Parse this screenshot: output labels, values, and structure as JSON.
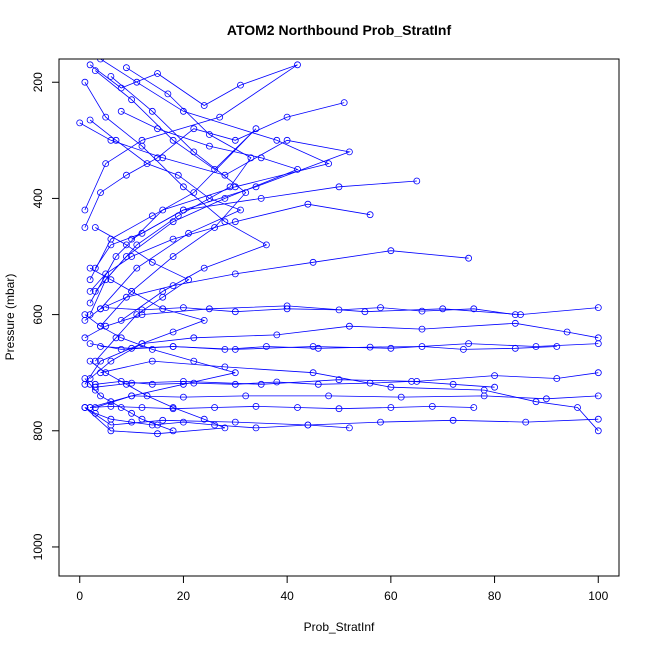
{
  "chart_data": {
    "type": "line",
    "title": "ATOM2 Northbound Prob_StratInf",
    "xlabel": "Prob_StratInf",
    "ylabel": "Pressure (mbar)",
    "xlim": [
      -4,
      104
    ],
    "ylim": [
      1050,
      160
    ],
    "y_reversed": true,
    "x_ticks": [
      0,
      20,
      40,
      60,
      80,
      100
    ],
    "y_ticks": [
      200,
      400,
      600,
      800,
      1000
    ],
    "grid": false,
    "legend": "none",
    "marker": "open-circle",
    "series_color": "#0000ff",
    "series": [
      {
        "x": [
          2,
          8,
          15,
          24,
          31,
          42,
          27,
          12,
          5,
          1
        ],
        "y": [
          170,
          210,
          185,
          240,
          205,
          170,
          260,
          300,
          340,
          420
        ]
      },
      {
        "x": [
          51,
          40,
          30,
          22,
          15,
          9,
          4,
          1
        ],
        "y": [
          235,
          260,
          300,
          280,
          330,
          360,
          390,
          450
        ]
      },
      {
        "x": [
          65,
          50,
          35,
          20,
          12,
          6,
          3
        ],
        "y": [
          370,
          380,
          400,
          420,
          460,
          480,
          520
        ]
      },
      {
        "x": [
          56,
          44,
          30,
          18,
          10,
          5,
          2
        ],
        "y": [
          428,
          410,
          440,
          470,
          500,
          530,
          560
        ]
      },
      {
        "x": [
          75,
          60,
          45,
          30,
          18,
          9,
          4,
          1
        ],
        "y": [
          503,
          490,
          510,
          530,
          550,
          570,
          590,
          610
        ]
      },
      {
        "x": [
          100,
          85,
          70,
          55,
          40,
          25,
          12,
          5,
          1
        ],
        "y": [
          588,
          600,
          590,
          595,
          585,
          590,
          600,
          620,
          640
        ]
      },
      {
        "x": [
          100,
          88,
          75,
          60,
          45,
          30,
          18,
          8,
          2
        ],
        "y": [
          650,
          655,
          650,
          658,
          655,
          660,
          655,
          660,
          650
        ]
      },
      {
        "x": [
          100,
          92,
          80,
          65,
          50,
          35,
          20,
          10,
          3
        ],
        "y": [
          700,
          710,
          705,
          715,
          712,
          720,
          715,
          718,
          725
        ]
      },
      {
        "x": [
          100,
          90,
          78,
          62,
          48,
          32,
          20,
          10,
          2
        ],
        "y": [
          740,
          745,
          740,
          742,
          740,
          740,
          742,
          740,
          760
        ]
      },
      {
        "x": [
          100,
          86,
          72,
          58,
          44,
          30,
          16,
          6,
          1
        ],
        "y": [
          780,
          785,
          782,
          785,
          790,
          785,
          782,
          790,
          760
        ]
      },
      {
        "x": [
          100,
          94,
          84,
          66,
          52,
          38,
          22,
          12,
          4,
          1
        ],
        "y": [
          640,
          630,
          615,
          625,
          620,
          635,
          640,
          650,
          680,
          720
        ]
      },
      {
        "x": [
          100,
          96,
          88,
          78,
          60,
          45,
          28,
          14,
          4
        ],
        "y": [
          800,
          760,
          750,
          730,
          725,
          700,
          690,
          680,
          700
        ]
      },
      {
        "x": [
          3,
          10,
          18,
          26,
          34,
          22,
          14,
          6,
          2
        ],
        "y": [
          180,
          230,
          300,
          350,
          280,
          390,
          430,
          470,
          540
        ]
      },
      {
        "x": [
          1,
          5,
          12,
          20,
          28,
          36,
          24,
          16,
          8
        ],
        "y": [
          200,
          260,
          310,
          380,
          440,
          480,
          520,
          560,
          610
        ]
      },
      {
        "x": [
          6,
          14,
          22,
          32,
          26,
          18,
          10,
          4
        ],
        "y": [
          190,
          250,
          320,
          390,
          450,
          500,
          560,
          620
        ]
      },
      {
        "x": [
          9,
          17,
          25,
          33,
          29,
          19,
          11,
          5,
          2
        ],
        "y": [
          175,
          220,
          290,
          330,
          380,
          430,
          480,
          540,
          600
        ]
      },
      {
        "x": [
          4,
          11,
          20,
          38,
          48,
          30,
          16,
          7,
          2
        ],
        "y": [
          160,
          200,
          250,
          300,
          340,
          380,
          420,
          500,
          580
        ]
      },
      {
        "x": [
          2,
          7,
          13,
          19,
          25,
          31,
          21,
          11,
          4
        ],
        "y": [
          265,
          300,
          340,
          360,
          400,
          420,
          460,
          520,
          590
        ]
      },
      {
        "x": [
          8,
          15,
          25,
          35,
          42,
          28,
          18,
          9,
          3
        ],
        "y": [
          250,
          280,
          310,
          330,
          350,
          400,
          440,
          500,
          560
        ]
      },
      {
        "x": [
          0,
          6,
          16,
          28,
          40,
          52,
          34,
          20,
          10
        ],
        "y": [
          270,
          300,
          330,
          360,
          300,
          320,
          380,
          420,
          470
        ]
      },
      {
        "x": [
          3,
          9,
          14,
          21,
          16,
          11,
          7,
          3
        ],
        "y": [
          450,
          480,
          510,
          540,
          570,
          600,
          640,
          680
        ]
      },
      {
        "x": [
          2,
          6,
          10,
          16,
          24,
          18,
          12,
          6,
          2
        ],
        "y": [
          520,
          540,
          560,
          590,
          610,
          630,
          650,
          680,
          710
        ]
      },
      {
        "x": [
          1,
          4,
          8,
          14,
          22,
          30,
          20,
          10,
          3
        ],
        "y": [
          600,
          620,
          640,
          660,
          680,
          700,
          720,
          740,
          760
        ]
      },
      {
        "x": [
          2,
          5,
          9,
          13,
          18,
          24,
          28,
          15,
          6,
          1
        ],
        "y": [
          680,
          700,
          720,
          740,
          760,
          780,
          795,
          805,
          800,
          760
        ]
      },
      {
        "x": [
          1,
          3,
          6,
          10,
          14,
          20,
          26,
          34,
          44,
          52
        ],
        "y": [
          760,
          770,
          780,
          785,
          790,
          785,
          790,
          795,
          790,
          795
        ]
      },
      {
        "x": [
          3,
          8,
          14,
          22,
          30,
          38,
          46,
          56,
          64,
          72,
          80
        ],
        "y": [
          720,
          715,
          720,
          718,
          720,
          716,
          720,
          718,
          715,
          720,
          725
        ]
      },
      {
        "x": [
          2,
          6,
          12,
          18,
          26,
          34,
          42,
          50,
          60,
          68,
          76
        ],
        "y": [
          760,
          758,
          760,
          762,
          760,
          758,
          760,
          762,
          760,
          758,
          760
        ]
      },
      {
        "x": [
          4,
          10,
          18,
          28,
          36,
          46,
          56,
          66,
          74,
          84,
          92
        ],
        "y": [
          655,
          658,
          655,
          660,
          655,
          658,
          656,
          655,
          660,
          658,
          655
        ]
      },
      {
        "x": [
          5,
          12,
          20,
          30,
          40,
          50,
          58,
          66,
          76,
          84
        ],
        "y": [
          588,
          592,
          588,
          595,
          590,
          592,
          588,
          594,
          590,
          600
        ]
      },
      {
        "x": [
          1,
          2,
          3,
          4,
          6,
          8,
          10,
          12,
          15,
          18
        ],
        "y": [
          710,
          720,
          730,
          740,
          750,
          760,
          770,
          780,
          790,
          800
        ]
      }
    ]
  }
}
